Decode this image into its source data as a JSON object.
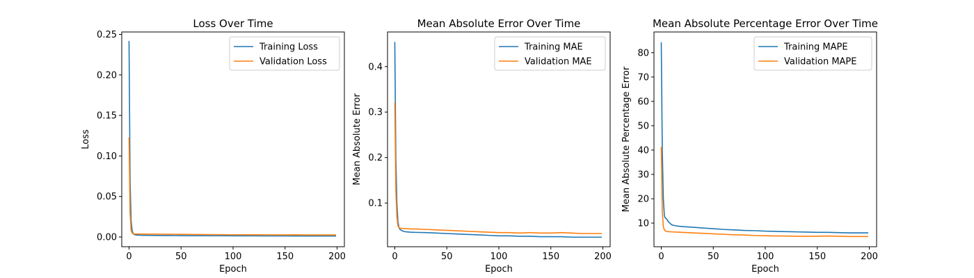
{
  "chart_data": [
    {
      "type": "line",
      "title": "Loss Over Time",
      "xlabel": "Epoch",
      "ylabel": "Loss",
      "xlim": [
        -7,
        207
      ],
      "ylim": [
        -0.012,
        0.253
      ],
      "xticks": [
        0,
        50,
        100,
        150,
        200
      ],
      "yticks": [
        0.0,
        0.05,
        0.1,
        0.15,
        0.2,
        0.25
      ],
      "ytick_labels": [
        "0.00",
        "0.05",
        "0.10",
        "0.15",
        "0.20",
        "0.25"
      ],
      "grid": false,
      "legend_position": "top-right",
      "series": [
        {
          "name": "Training Loss",
          "color": "#1f77b4",
          "x": [
            0,
            1,
            2,
            3,
            4,
            5,
            7,
            10,
            15,
            20,
            30,
            40,
            50,
            60,
            70,
            80,
            90,
            100,
            110,
            120,
            130,
            140,
            150,
            160,
            170,
            180,
            190,
            199
          ],
          "y": [
            0.242,
            0.07,
            0.02,
            0.008,
            0.004,
            0.003,
            0.0025,
            0.0022,
            0.0021,
            0.002,
            0.0019,
            0.0018,
            0.0017,
            0.0016,
            0.0016,
            0.0015,
            0.0015,
            0.0014,
            0.0014,
            0.0014,
            0.0013,
            0.0013,
            0.0013,
            0.0012,
            0.0012,
            0.0012,
            0.0012,
            0.0012
          ]
        },
        {
          "name": "Validation Loss",
          "color": "#ff7f0e",
          "x": [
            0,
            1,
            2,
            3,
            4,
            5,
            7,
            10,
            15,
            20,
            30,
            40,
            50,
            60,
            70,
            80,
            90,
            100,
            110,
            120,
            130,
            140,
            150,
            160,
            170,
            180,
            190,
            199
          ],
          "y": [
            0.123,
            0.03,
            0.008,
            0.005,
            0.004,
            0.0038,
            0.0037,
            0.0037,
            0.0036,
            0.0036,
            0.0035,
            0.0034,
            0.0033,
            0.0032,
            0.0031,
            0.003,
            0.0029,
            0.0028,
            0.0028,
            0.0027,
            0.0027,
            0.0026,
            0.0026,
            0.0027,
            0.0025,
            0.0025,
            0.0025,
            0.0025
          ]
        }
      ]
    },
    {
      "type": "line",
      "title": "Mean Absolute Error Over Time",
      "xlabel": "Epoch",
      "ylabel": "Mean Absolute Error",
      "xlim": [
        -7,
        207
      ],
      "ylim": [
        0.004,
        0.476
      ],
      "xticks": [
        0,
        50,
        100,
        150,
        200
      ],
      "yticks": [
        0.1,
        0.2,
        0.3,
        0.4
      ],
      "ytick_labels": [
        "0.1",
        "0.2",
        "0.3",
        "0.4"
      ],
      "grid": false,
      "legend_position": "top-right",
      "series": [
        {
          "name": "Training MAE",
          "color": "#1f77b4",
          "x": [
            0,
            1,
            2,
            3,
            4,
            5,
            7,
            10,
            15,
            20,
            30,
            40,
            50,
            60,
            70,
            80,
            90,
            100,
            110,
            120,
            130,
            140,
            150,
            160,
            170,
            180,
            190,
            199
          ],
          "y": [
            0.454,
            0.2,
            0.1,
            0.06,
            0.046,
            0.042,
            0.039,
            0.037,
            0.036,
            0.0355,
            0.035,
            0.034,
            0.033,
            0.032,
            0.031,
            0.03,
            0.029,
            0.028,
            0.028,
            0.027,
            0.027,
            0.026,
            0.026,
            0.026,
            0.025,
            0.025,
            0.025,
            0.025
          ]
        },
        {
          "name": "Validation MAE",
          "color": "#ff7f0e",
          "x": [
            0,
            1,
            2,
            3,
            4,
            5,
            7,
            10,
            15,
            20,
            30,
            40,
            50,
            60,
            70,
            80,
            90,
            100,
            110,
            120,
            130,
            140,
            150,
            160,
            170,
            180,
            190,
            199
          ],
          "y": [
            0.321,
            0.13,
            0.07,
            0.05,
            0.046,
            0.045,
            0.044,
            0.044,
            0.043,
            0.043,
            0.042,
            0.041,
            0.04,
            0.039,
            0.038,
            0.037,
            0.036,
            0.035,
            0.035,
            0.034,
            0.035,
            0.034,
            0.034,
            0.035,
            0.034,
            0.033,
            0.033,
            0.033
          ]
        }
      ]
    },
    {
      "type": "line",
      "title": "Mean Absolute Percentage Error Over Time",
      "xlabel": "Epoch",
      "ylabel": "Mean Absolute Percentage Error",
      "xlim": [
        -7,
        207
      ],
      "ylim": [
        0.3,
        88.5
      ],
      "xticks": [
        0,
        50,
        100,
        150,
        200
      ],
      "yticks": [
        10,
        20,
        30,
        40,
        50,
        60,
        70,
        80
      ],
      "ytick_labels": [
        "10",
        "20",
        "30",
        "40",
        "50",
        "60",
        "70",
        "80"
      ],
      "grid": false,
      "legend_position": "top-right",
      "series": [
        {
          "name": "Training MAPE",
          "color": "#1f77b4",
          "x": [
            0,
            1,
            2,
            3,
            4,
            5,
            7,
            10,
            15,
            20,
            30,
            40,
            50,
            60,
            70,
            80,
            90,
            100,
            110,
            120,
            130,
            140,
            150,
            160,
            170,
            180,
            190,
            199
          ],
          "y": [
            84.3,
            40,
            20,
            13,
            12,
            11.8,
            10.5,
            9.3,
            8.8,
            8.6,
            8.3,
            8.0,
            7.7,
            7.4,
            7.2,
            7.0,
            6.9,
            6.7,
            6.6,
            6.5,
            6.4,
            6.3,
            6.2,
            6.2,
            6.1,
            6.0,
            6.0,
            6.0
          ]
        },
        {
          "name": "Validation MAPE",
          "color": "#ff7f0e",
          "x": [
            0,
            1,
            2,
            3,
            4,
            5,
            7,
            10,
            15,
            20,
            30,
            40,
            50,
            60,
            70,
            80,
            90,
            100,
            110,
            120,
            130,
            140,
            150,
            160,
            170,
            180,
            190,
            199
          ],
          "y": [
            41.3,
            15,
            8.5,
            7.2,
            6.8,
            6.6,
            6.5,
            6.4,
            6.3,
            6.2,
            6.0,
            5.8,
            5.6,
            5.4,
            5.2,
            5.1,
            4.9,
            4.8,
            4.7,
            4.7,
            4.6,
            4.6,
            4.6,
            4.7,
            4.6,
            4.5,
            4.5,
            4.5
          ]
        }
      ]
    }
  ]
}
